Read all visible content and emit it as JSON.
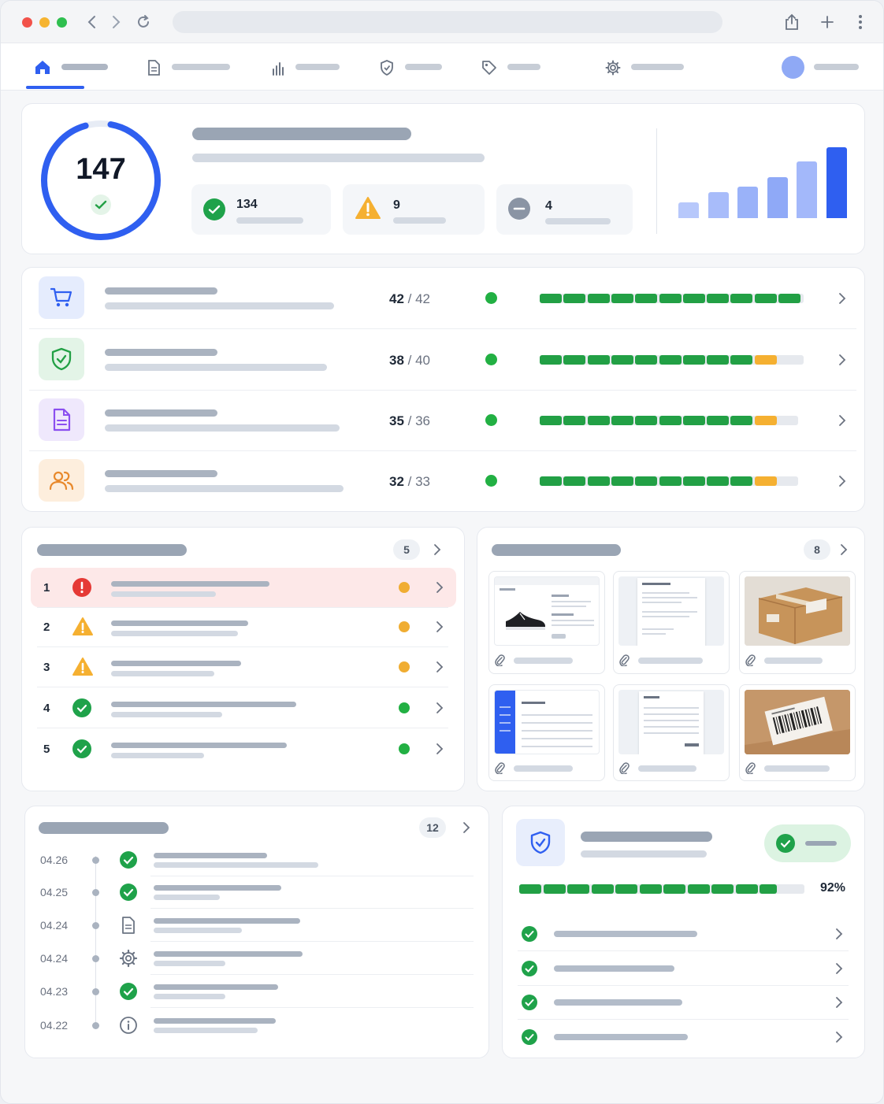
{
  "score": {
    "value": "147"
  },
  "stats": [
    {
      "value": "134",
      "kind": "passed",
      "color": "#1fa24a"
    },
    {
      "value": "9",
      "kind": "warning",
      "color": "#f5a623"
    },
    {
      "value": "4",
      "kind": "skipped",
      "color": "#8a94a4"
    }
  ],
  "trend_bars": [
    0.22,
    0.37,
    0.44,
    0.58,
    0.8,
    1.0
  ],
  "categories": [
    {
      "icon": "cart-icon",
      "done": "42",
      "total": "/ 42",
      "progress": 1.0,
      "warn": 0
    },
    {
      "icon": "shield-check-icon",
      "done": "38",
      "total": "/ 40",
      "progress": 0.95,
      "warn": 1
    },
    {
      "icon": "document-icon",
      "done": "35",
      "total": "/ 36",
      "progress": 0.97,
      "warn": 1
    },
    {
      "icon": "users-icon",
      "done": "32",
      "total": "/ 33",
      "progress": 0.97,
      "warn": 1
    }
  ],
  "issues": {
    "count": "5",
    "items": [
      {
        "num": "1",
        "severity": "error"
      },
      {
        "num": "2",
        "severity": "warning"
      },
      {
        "num": "3",
        "severity": "warning"
      },
      {
        "num": "4",
        "severity": "ok"
      },
      {
        "num": "5",
        "severity": "ok"
      }
    ]
  },
  "attachments": {
    "count": "8"
  },
  "timeline": {
    "count": "12",
    "items": [
      {
        "date": "04.26",
        "icon": "check-circle-icon"
      },
      {
        "date": "04.25",
        "icon": "check-circle-icon"
      },
      {
        "date": "04.24",
        "icon": "document-icon"
      },
      {
        "date": "04.24",
        "icon": "gear-icon"
      },
      {
        "date": "04.23",
        "icon": "check-circle-icon"
      },
      {
        "date": "04.22",
        "icon": "info-icon"
      }
    ]
  },
  "security": {
    "percent_label": "92%",
    "progress": 0.92
  },
  "colors": {
    "accent": "#2f5ff0",
    "success": "#22a045",
    "warning": "#f5b031",
    "error": "#e53935"
  }
}
